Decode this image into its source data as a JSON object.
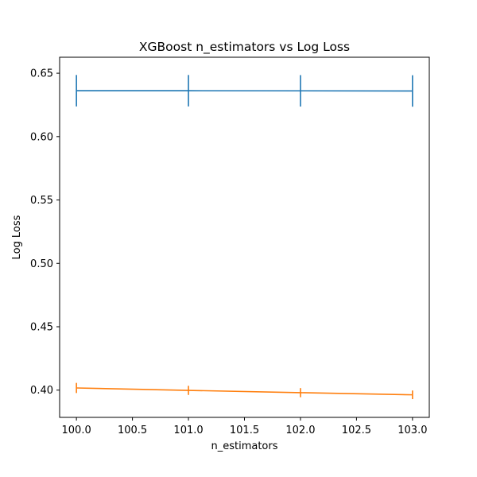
{
  "chart_data": {
    "type": "line",
    "title": "XGBoost n_estimators vs Log Loss",
    "xlabel": "n_estimators",
    "ylabel": "Log Loss",
    "xlim": [
      99.85,
      103.15
    ],
    "ylim": [
      0.3785,
      0.6626
    ],
    "xticks": [
      100.0,
      100.5,
      101.0,
      101.5,
      102.0,
      102.5,
      103.0
    ],
    "xtick_labels": [
      "100.0",
      "100.5",
      "101.0",
      "101.5",
      "102.0",
      "102.5",
      "103.0"
    ],
    "yticks": [
      0.4,
      0.45,
      0.5,
      0.55,
      0.6,
      0.65
    ],
    "ytick_labels": [
      "0.40",
      "0.45",
      "0.50",
      "0.55",
      "0.60",
      "0.65"
    ],
    "grid": false,
    "legend": null,
    "series": [
      {
        "color": "#1f77b4",
        "x": [
          100,
          101,
          102,
          103
        ],
        "values": [
          0.6362,
          0.6362,
          0.6361,
          0.636
        ],
        "error": [
          0.0124,
          0.0124,
          0.0124,
          0.0124
        ]
      },
      {
        "color": "#ff7f0e",
        "x": [
          100,
          101,
          102,
          103
        ],
        "values": [
          0.4017,
          0.3998,
          0.398,
          0.3963
        ],
        "error": [
          0.004,
          0.0036,
          0.0036,
          0.0034
        ]
      }
    ]
  }
}
